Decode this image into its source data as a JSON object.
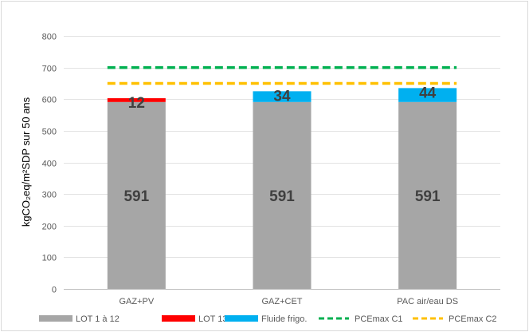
{
  "chart_data": {
    "type": "bar",
    "stacked": true,
    "ylabel": "kgCO₂eq/m²SDP sur 50 ans",
    "xlabel": "",
    "ylim": [
      0,
      800
    ],
    "yticks": [
      0,
      100,
      200,
      300,
      400,
      500,
      600,
      700,
      800
    ],
    "grid": true,
    "categories": [
      "GAZ+PV",
      "GAZ+CET",
      "PAC air/eau DS"
    ],
    "series": [
      {
        "name": "LOT 1 à 12",
        "color": "#a6a6a6",
        "values": [
          591,
          591,
          591
        ]
      },
      {
        "name": "LOT 13 : PV",
        "color": "#ff0000",
        "values": [
          12,
          0,
          0
        ]
      },
      {
        "name": "Fluide frigo.",
        "color": "#00b0f0",
        "values": [
          0,
          34,
          44
        ]
      }
    ],
    "data_labels": [
      [
        "591",
        "591",
        "591"
      ],
      [
        "12",
        "",
        ""
      ],
      [
        "",
        "34",
        "44"
      ]
    ],
    "reference_lines": [
      {
        "name": "PCEmax C1",
        "value": 700,
        "color": "#00b050",
        "style": "dashed"
      },
      {
        "name": "PCEmax C2",
        "value": 650,
        "color": "#ffc000",
        "style": "dashed"
      }
    ],
    "legend": [
      "LOT 1 à 12",
      "LOT 13 : PV",
      "Fluide frigo.",
      "PCEmax C1",
      "PCEmax C2"
    ],
    "legend_position": "bottom"
  }
}
